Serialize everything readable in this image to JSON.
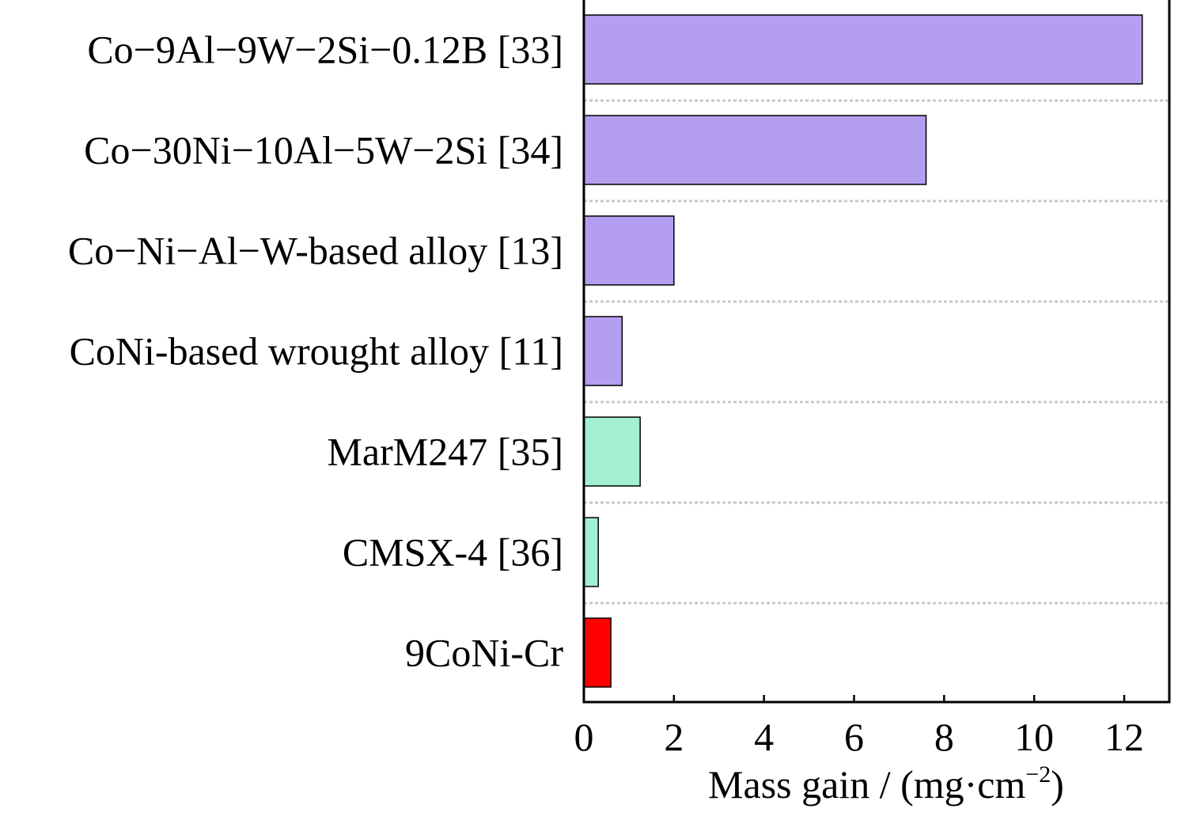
{
  "chart_data": {
    "type": "bar",
    "orientation": "horizontal",
    "categories": [
      "Co−9Al−9W−2Si−0.12B [33]",
      "Co−30Ni−10Al−5W−2Si [34]",
      "Co−Ni−Al−W-based alloy [13]",
      "CoNi-based wrought alloy [11]",
      "MarM247 [35]",
      "CMSX-4 [36]",
      "9CoNi-Cr"
    ],
    "values": [
      12.4,
      7.6,
      2.0,
      0.85,
      1.25,
      0.32,
      0.6
    ],
    "bar_colors": [
      "#b49ef0",
      "#b49ef0",
      "#b49ef0",
      "#b49ef0",
      "#a2f0d0",
      "#a2f0d0",
      "#ff0000"
    ],
    "xlabel": {
      "main": "Mass gain / (mg·cm",
      "superscript": "−2",
      "close": ")"
    },
    "xlim": [
      0,
      13
    ],
    "xticks": [
      0,
      2,
      4,
      6,
      8,
      10,
      12
    ],
    "grid": "horizontal dotted separators between categories",
    "frame_color": "#000000"
  }
}
